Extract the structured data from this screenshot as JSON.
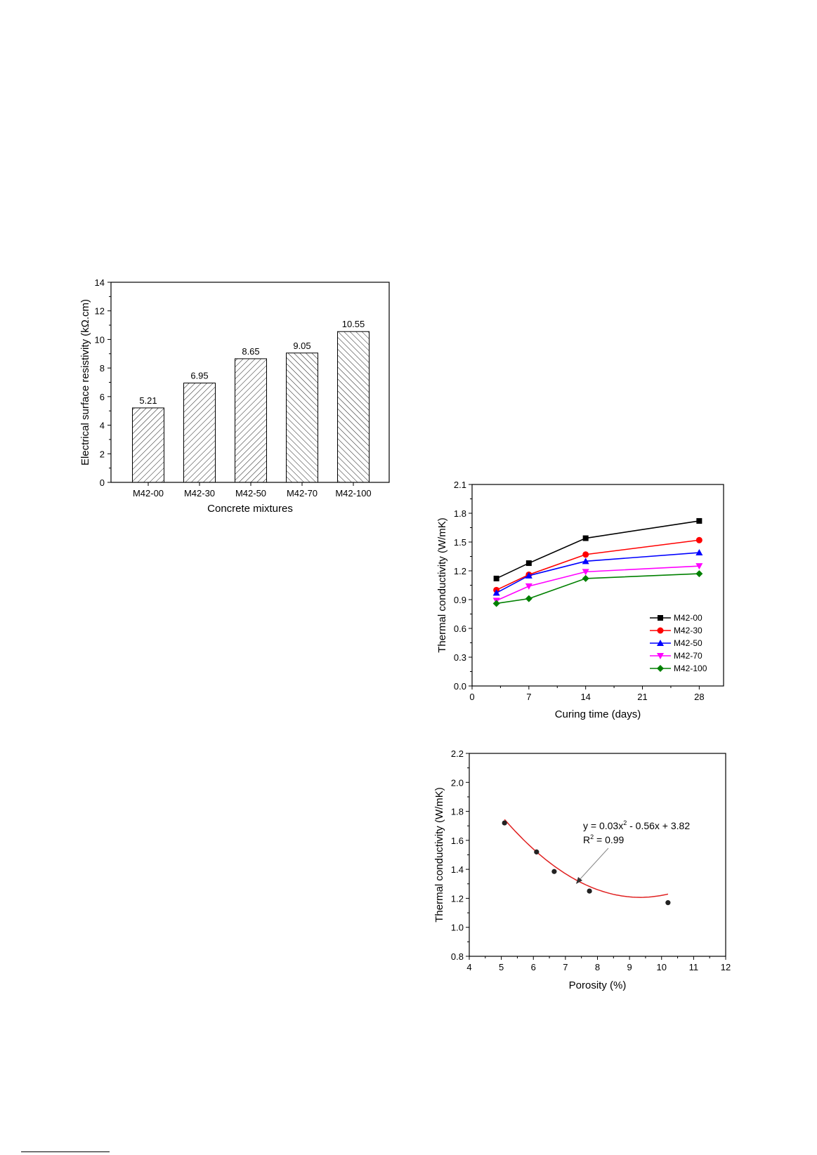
{
  "chart_data": [
    {
      "type": "bar",
      "title": "",
      "xlabel": "Concrete mixtures",
      "ylabel": "Electrical surface resistivity (kΩ.cm)",
      "categories": [
        "M42-00",
        "M42-30",
        "M42-50",
        "M42-70",
        "M42-100"
      ],
      "values": [
        5.21,
        6.95,
        8.65,
        9.05,
        10.55
      ],
      "value_labels": [
        "5.21",
        "6.95",
        "8.65",
        "9.05",
        "10.55"
      ],
      "ylim": [
        0,
        14
      ],
      "yticks": [
        "0",
        "2",
        "4",
        "6",
        "8",
        "10",
        "12",
        "14"
      ],
      "grid": false,
      "bar_pattern": "diagonal hatch"
    },
    {
      "type": "line",
      "title": "",
      "xlabel": "Curing time (days)",
      "ylabel": "Thermal conductivity (W/mK)",
      "x": [
        3,
        7,
        14,
        28
      ],
      "xlim": [
        0,
        31
      ],
      "ylim": [
        0,
        2.1
      ],
      "xticks": [
        "0",
        "7",
        "14",
        "21",
        "28"
      ],
      "yticks": [
        "0.0",
        "0.3",
        "0.6",
        "0.9",
        "1.2",
        "1.5",
        "1.8",
        "2.1"
      ],
      "grid": false,
      "legend": "bottom-right",
      "series": [
        {
          "name": "M42-00",
          "values": [
            1.12,
            1.28,
            1.54,
            1.72
          ],
          "color": "#000000",
          "marker": "square"
        },
        {
          "name": "M42-30",
          "values": [
            1.0,
            1.16,
            1.37,
            1.52
          ],
          "color": "#ff0000",
          "marker": "circle"
        },
        {
          "name": "M42-50",
          "values": [
            0.97,
            1.15,
            1.3,
            1.39
          ],
          "color": "#0000ff",
          "marker": "triangle-up"
        },
        {
          "name": "M42-70",
          "values": [
            0.89,
            1.04,
            1.19,
            1.25
          ],
          "color": "#ff00ff",
          "marker": "triangle-down"
        },
        {
          "name": "M42-100",
          "values": [
            0.86,
            0.91,
            1.12,
            1.17
          ],
          "color": "#008000",
          "marker": "diamond"
        }
      ]
    },
    {
      "type": "scatter",
      "title": "",
      "xlabel": "Porosity (%)",
      "ylabel": "Thermal conductivity (W/mK)",
      "x": [
        5.1,
        6.1,
        6.65,
        7.75,
        10.2
      ],
      "y": [
        1.72,
        1.52,
        1.385,
        1.25,
        1.17
      ],
      "xlim": [
        4,
        12
      ],
      "ylim": [
        0.8,
        2.2
      ],
      "xticks": [
        "4",
        "5",
        "6",
        "7",
        "8",
        "9",
        "10",
        "11",
        "12"
      ],
      "yticks": [
        "0.8",
        "1.0",
        "1.2",
        "1.4",
        "1.6",
        "1.8",
        "2.0",
        "2.2"
      ],
      "grid": false,
      "fit": {
        "type": "quadratic",
        "coefficients": [
          0.03,
          -0.56,
          3.82
        ],
        "color": "#e02020",
        "equation_text": "y = 0.03x",
        "equation_sup": "2",
        "equation_rest": " - 0.56x + 3.82",
        "r2_text": "R",
        "r2_sup": "2",
        "r2_rest": " = 0.99"
      }
    }
  ]
}
